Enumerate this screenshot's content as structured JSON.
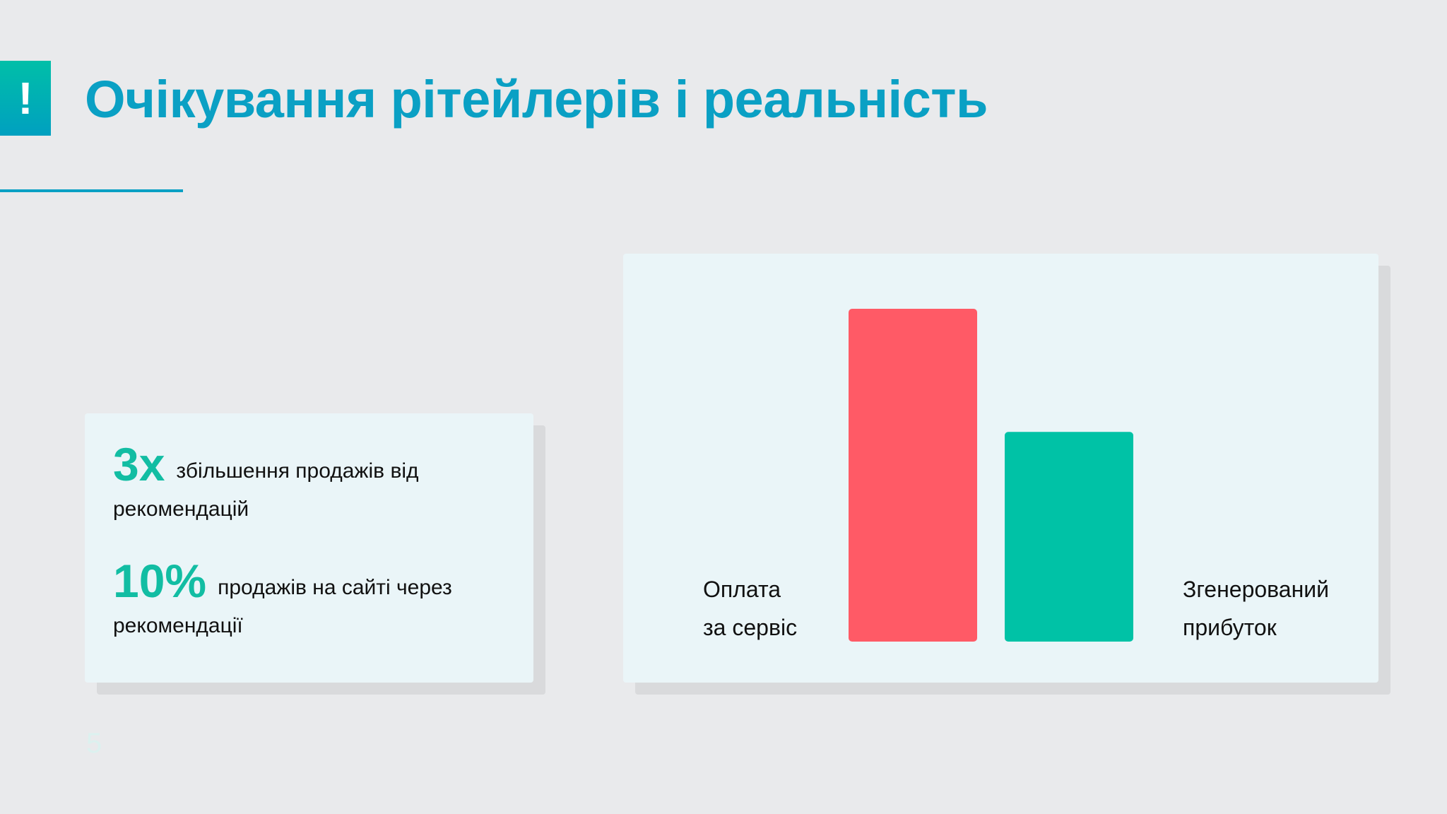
{
  "header": {
    "badge_icon": "exclamation-icon",
    "badge_text": "!",
    "title": "Очікування рітейлерів і реальність"
  },
  "stats": [
    {
      "value": "3x",
      "text_line1": "збільшення продажів від",
      "text_line2": "рекомендацій"
    },
    {
      "value": "10%",
      "text_line1": "продажів на сайті через",
      "text_line2": "рекомендації"
    }
  ],
  "page_number": "5",
  "chart_data": {
    "type": "bar",
    "categories": [
      "Оплата за сервіс",
      "Згенерований прибуток"
    ],
    "category_lines": [
      [
        "Оплата",
        "за сервіс"
      ],
      [
        "Згенерований",
        "прибуток"
      ]
    ],
    "values": [
      100,
      63
    ],
    "colors": [
      "#ff5a66",
      "#00c2a6"
    ],
    "ylim": [
      0,
      100
    ],
    "grid": false,
    "axes_visible": false
  }
}
